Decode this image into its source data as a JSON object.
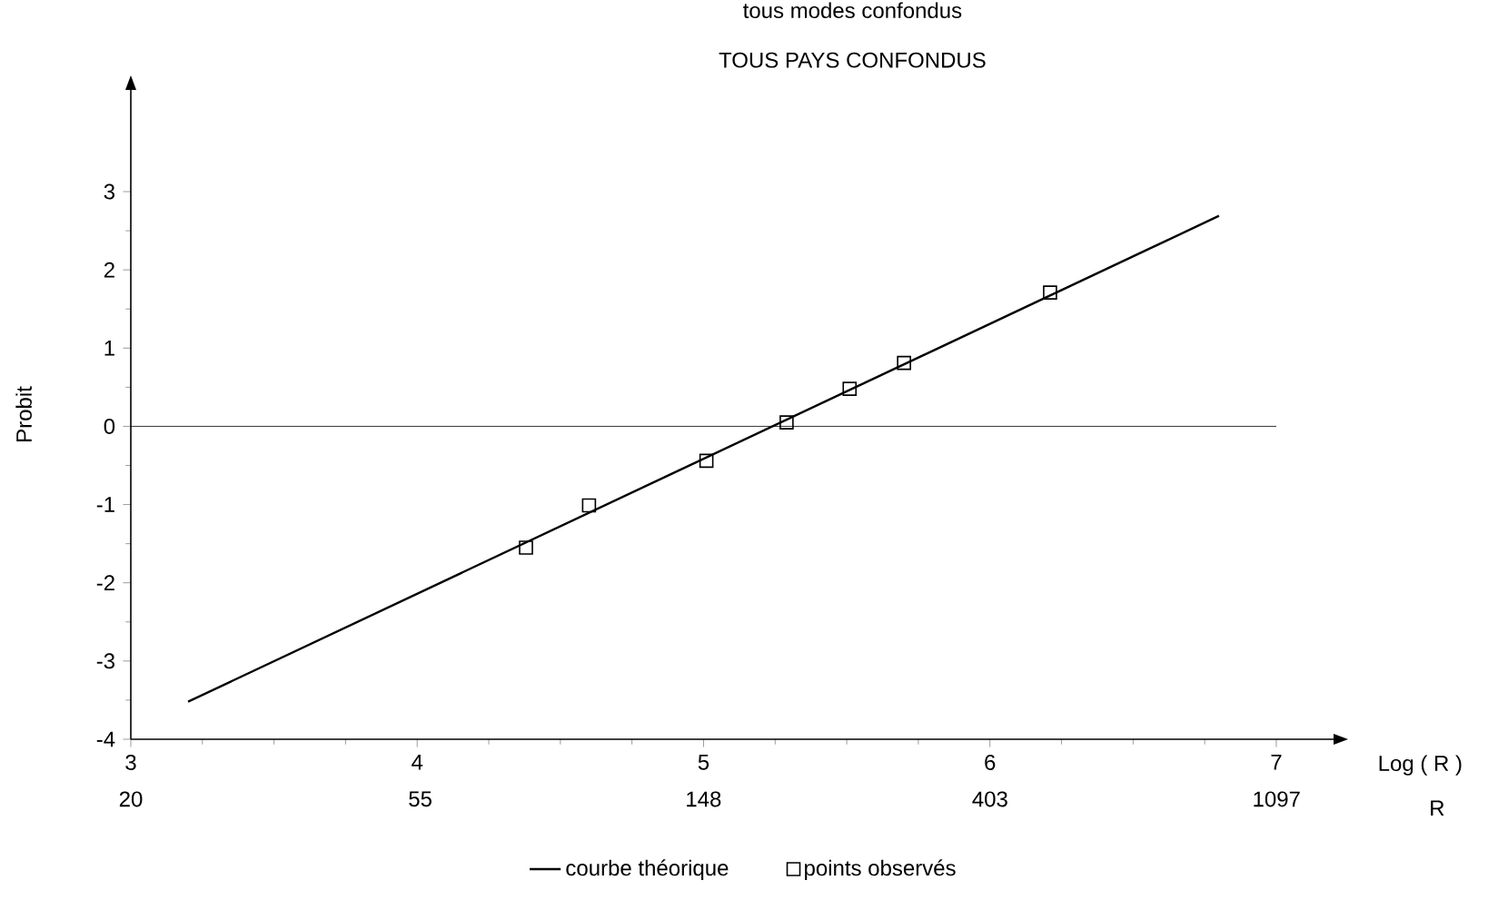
{
  "chart_data": {
    "type": "line",
    "title": "tous modes confondus",
    "subtitle": "TOUS PAYS CONFONDUS",
    "xlabel": "Log ( R )",
    "ylabel": "Probit",
    "x2label": "R",
    "xlim": [
      3,
      7.2
    ],
    "ylim": [
      -4,
      4.3
    ],
    "xticks": [
      3,
      4,
      5,
      6,
      7
    ],
    "yticks": [
      -4,
      -3,
      -2,
      -1,
      0,
      1,
      2,
      3
    ],
    "x2lim": [
      20,
      1339
    ],
    "log": "x2",
    "x2ticks": [
      20,
      55,
      148,
      403,
      1097
    ],
    "ref_lines": [
      {
        "axis": "y",
        "value": 0,
        "color": "#000000"
      }
    ],
    "legend": "bottom",
    "grid": false,
    "series": [
      {
        "name": "courbe théorique",
        "color": "#000000",
        "marker": "none",
        "line_style": "solid",
        "x": [
          3.2,
          6.8
        ],
        "values": [
          -3.52,
          2.69
        ]
      },
      {
        "name": "points observés",
        "type": "scatter",
        "color": "#000000",
        "marker": "square",
        "x": [
          4.38,
          4.6,
          5.01,
          5.29,
          5.51,
          5.7,
          6.21
        ],
        "values": [
          -1.55,
          -1.01,
          -0.44,
          0.05,
          0.48,
          0.81,
          1.71
        ]
      }
    ]
  }
}
